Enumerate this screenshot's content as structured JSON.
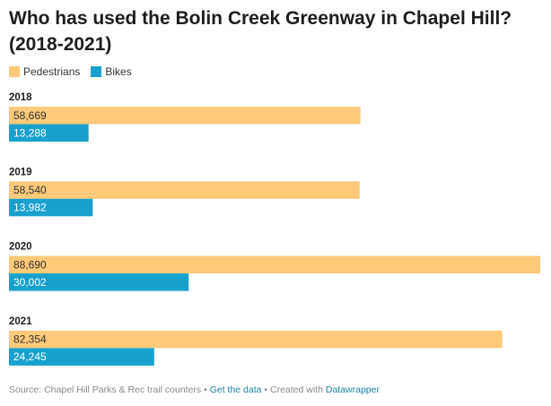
{
  "title": "Who has used the Bolin Creek Greenway in Chapel Hill? (2018-2021)",
  "colors": {
    "pedestrians": "#fec979",
    "bikes": "#18a1cd"
  },
  "chart_data": {
    "type": "bar",
    "orientation": "horizontal",
    "categories": [
      "2018",
      "2019",
      "2020",
      "2021"
    ],
    "series": [
      {
        "name": "Pedestrians",
        "values": [
          58669,
          58540,
          88690,
          82354
        ],
        "labels": [
          "58,669",
          "58,540",
          "88,690",
          "82,354"
        ]
      },
      {
        "name": "Bikes",
        "values": [
          13288,
          13982,
          30002,
          24245
        ],
        "labels": [
          "13,288",
          "13,982",
          "30,002",
          "24,245"
        ]
      }
    ],
    "xlim": [
      0,
      88690
    ],
    "legend": "top-left",
    "grid": false
  },
  "footer": {
    "source": "Source: Chapel Hill Parks & Rec trail counters",
    "sep1": " • ",
    "get_data": "Get the data",
    "sep2": " • Created with ",
    "tool": "Datawrapper"
  }
}
